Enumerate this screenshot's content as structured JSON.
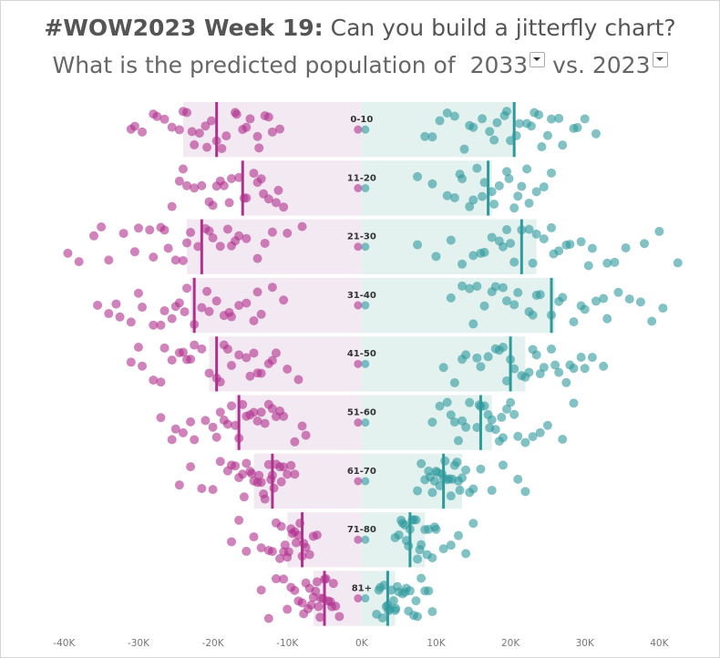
{
  "title": {
    "bold": "#WOW2023 Week 19:",
    "rest": " Can you build a jitterfly chart?"
  },
  "subtitle": {
    "prefix": "What is the predicted population of",
    "year_a": "2033",
    "middle": " vs. ",
    "year_b": "2023"
  },
  "chart_data": {
    "type": "scatter",
    "description_type": "jitter-butterfly",
    "xlim": [
      -42000,
      44000
    ],
    "x_ticks": [
      -40000,
      -30000,
      -20000,
      -10000,
      0,
      10000,
      20000,
      30000,
      40000
    ],
    "x_tick_labels": [
      "-40K",
      "-30K",
      "-20K",
      "-10K",
      "0K",
      "10K",
      "20K",
      "30K",
      "40K"
    ],
    "colors": {
      "left": "#b0308e",
      "right": "#2e9a9c",
      "left_band": "#f3e9f2",
      "right_band": "#e3f1ef",
      "tick_label": "#777777"
    },
    "groups": [
      {
        "label": "0-10",
        "left_bar": -24000,
        "right_bar": 20500,
        "left_avg": -19500,
        "right_avg": 20500,
        "left_points": [
          -31000,
          -29500,
          -28000,
          -26500,
          -25500,
          -24500,
          -23500,
          -22500,
          -21800,
          -21000,
          -20200,
          -19500,
          -18200,
          -17000,
          -16000,
          -15000,
          -14000,
          -13000,
          -12000,
          -11000,
          -27500,
          -24000,
          -20800,
          -18800,
          -16800,
          -15500,
          -13800,
          -12500,
          -30500,
          -22800
        ],
        "right_points": [
          8500,
          10500,
          12500,
          13800,
          15000,
          16200,
          17200,
          18200,
          19200,
          20000,
          21200,
          22200,
          23200,
          24200,
          25500,
          27000,
          28500,
          30000,
          31500,
          14500,
          17800,
          20800,
          23800,
          26500,
          29000,
          11500,
          19500,
          22800,
          9500,
          25000
        ]
      },
      {
        "label": "11-20",
        "left_bar": -16000,
        "right_bar": 17500,
        "left_avg": -16000,
        "right_avg": 17000,
        "left_points": [
          -25500,
          -24500,
          -23500,
          -22500,
          -21500,
          -20500,
          -19500,
          -18500,
          -17500,
          -16500,
          -15500,
          -14500,
          -13500,
          -12500,
          -11500,
          -10500,
          -20000,
          -17800,
          -15800,
          -13200,
          -11200,
          -24000,
          -19000,
          -14000
        ],
        "right_points": [
          7500,
          9500,
          11500,
          12500,
          13500,
          14500,
          15500,
          16500,
          17500,
          18500,
          19500,
          20500,
          21500,
          22500,
          23500,
          24500,
          25500,
          15000,
          17800,
          19800,
          22200,
          13200,
          16200,
          21000
        ]
      },
      {
        "label": "21-30",
        "left_bar": -23500,
        "right_bar": 23500,
        "left_avg": -21500,
        "right_avg": 21500,
        "left_points": [
          -39500,
          -38000,
          -36000,
          -34000,
          -32000,
          -30000,
          -28500,
          -27000,
          -26000,
          -25000,
          -24000,
          -23000,
          -22000,
          -21000,
          -20000,
          -19000,
          -18000,
          -17000,
          -16500,
          -15500,
          -14000,
          -12000,
          -10000,
          -8000,
          -30500,
          -26500,
          -23500,
          -20500,
          -17500,
          -13000,
          -35000,
          -28000
        ],
        "right_points": [
          7500,
          10000,
          12000,
          13500,
          15000,
          16500,
          17500,
          18500,
          19500,
          20500,
          21500,
          22500,
          23500,
          24500,
          25500,
          26500,
          28000,
          29500,
          31000,
          33000,
          35500,
          38000,
          40000,
          42500,
          16000,
          19000,
          23000,
          25800,
          27500,
          30500,
          34000,
          20000
        ]
      },
      {
        "label": "31-40",
        "left_bar": -23000,
        "right_bar": 26000,
        "left_avg": -22500,
        "right_avg": 25500,
        "left_points": [
          -35500,
          -34000,
          -32500,
          -31000,
          -29500,
          -28000,
          -26500,
          -25500,
          -24500,
          -23500,
          -22500,
          -21500,
          -20500,
          -19500,
          -18500,
          -17500,
          -16500,
          -15500,
          -14500,
          -13500,
          -12000,
          -10500,
          -33000,
          -27000,
          -23800,
          -20800,
          -17800,
          -14000,
          -30000,
          -25000
        ],
        "right_points": [
          12000,
          13500,
          15000,
          16500,
          18000,
          19500,
          21000,
          22500,
          24000,
          25500,
          27000,
          28500,
          30000,
          31500,
          33000,
          34500,
          36000,
          37500,
          39000,
          40500,
          14500,
          17500,
          20500,
          23500,
          26500,
          29500,
          32500,
          15500,
          19000,
          23000
        ]
      },
      {
        "label": "41-50",
        "left_bar": -20500,
        "right_bar": 22000,
        "left_avg": -19500,
        "right_avg": 20000,
        "left_points": [
          -31000,
          -29500,
          -28000,
          -26500,
          -25500,
          -24500,
          -23500,
          -22500,
          -21500,
          -20500,
          -19500,
          -18500,
          -17500,
          -16500,
          -15500,
          -14500,
          -13500,
          -12500,
          -11500,
          -10000,
          -8500,
          -27000,
          -23000,
          -19000,
          -15000,
          -12000,
          -30000,
          -24000,
          -18000,
          -14000
        ],
        "right_points": [
          11000,
          12500,
          14000,
          15500,
          17000,
          18500,
          19500,
          20500,
          21500,
          22500,
          23500,
          24500,
          25500,
          26500,
          27500,
          28500,
          29500,
          31000,
          32500,
          16000,
          18000,
          20000,
          22000,
          24000,
          26000,
          28000,
          30000,
          13500,
          19000,
          23000
        ]
      },
      {
        "label": "51-60",
        "left_bar": -17000,
        "right_bar": 17500,
        "left_avg": -16500,
        "right_avg": 16000,
        "left_points": [
          -27000,
          -25500,
          -24000,
          -22500,
          -21000,
          -19500,
          -18500,
          -17500,
          -16500,
          -15500,
          -14500,
          -13500,
          -12500,
          -11500,
          -10500,
          -9000,
          -7500,
          -20000,
          -18000,
          -16000,
          -14000,
          -12000,
          -23000,
          -15000,
          -19000,
          -13000,
          -17000,
          -11000,
          -8000,
          -25000
        ],
        "right_points": [
          9500,
          10500,
          11500,
          12500,
          13500,
          14500,
          15500,
          16000,
          16500,
          17000,
          17500,
          18000,
          18500,
          19000,
          19500,
          20000,
          21000,
          22000,
          23000,
          24000,
          25000,
          27000,
          28500,
          12000,
          14000,
          15800,
          17200,
          18800,
          20500,
          13000
        ]
      },
      {
        "label": "61-70",
        "left_bar": -14500,
        "right_bar": 13500,
        "left_avg": -12000,
        "right_avg": 11000,
        "left_points": [
          -24500,
          -23000,
          -21500,
          -20000,
          -19000,
          -18000,
          -17000,
          -16000,
          -15500,
          -15000,
          -14500,
          -14000,
          -13500,
          -13000,
          -12500,
          -12000,
          -11500,
          -11000,
          -10500,
          -10000,
          -9500,
          -9000,
          -17500,
          -16500,
          -14800,
          -13200,
          -12200,
          -10800,
          -15800,
          -11800,
          -13800
        ],
        "right_points": [
          7500,
          8500,
          9000,
          9500,
          10000,
          10500,
          11000,
          11500,
          12000,
          12500,
          13000,
          13500,
          14000,
          14500,
          15000,
          16000,
          17500,
          19000,
          21000,
          22000,
          8000,
          9200,
          10200,
          11200,
          12200,
          13200,
          10800,
          12800,
          9800,
          11800
        ]
      },
      {
        "label": "71-80",
        "left_bar": -10000,
        "right_bar": 8500,
        "left_avg": -8000,
        "right_avg": 6500,
        "left_points": [
          -17500,
          -16500,
          -15500,
          -14500,
          -13500,
          -12500,
          -11500,
          -11000,
          -10500,
          -10000,
          -9500,
          -9000,
          -8500,
          -8000,
          -7500,
          -7000,
          -6500,
          -6000,
          -12000,
          -10800,
          -9800,
          -8800,
          -7800,
          -9300,
          -10300,
          -8300
        ],
        "right_points": [
          4500,
          5000,
          5500,
          6000,
          6500,
          7000,
          7500,
          8000,
          8500,
          9000,
          9500,
          10000,
          11000,
          12000,
          13000,
          14000,
          15000,
          5800,
          6800,
          7800,
          8800,
          6300,
          7300,
          5300,
          9800
        ]
      },
      {
        "label": "81+",
        "left_bar": -6500,
        "right_bar": 4500,
        "left_avg": -5000,
        "right_avg": 3500,
        "left_points": [
          -13500,
          -12500,
          -11500,
          -10500,
          -9500,
          -8500,
          -8000,
          -7500,
          -7000,
          -6500,
          -6000,
          -5500,
          -5000,
          -4500,
          -4000,
          -3500,
          -3000,
          -9000,
          -7800,
          -6800,
          -5800,
          -4800,
          -3800,
          -6200,
          -5200,
          -7200,
          -4200,
          -10000,
          -5600
        ],
        "right_points": [
          2000,
          2500,
          3000,
          3500,
          4000,
          4500,
          5000,
          5500,
          6000,
          6500,
          7000,
          7500,
          8000,
          8500,
          9000,
          9500,
          2800,
          3800,
          4800,
          5800,
          3300,
          4300,
          6300,
          7300,
          2300,
          3600,
          4600
        ]
      }
    ]
  }
}
